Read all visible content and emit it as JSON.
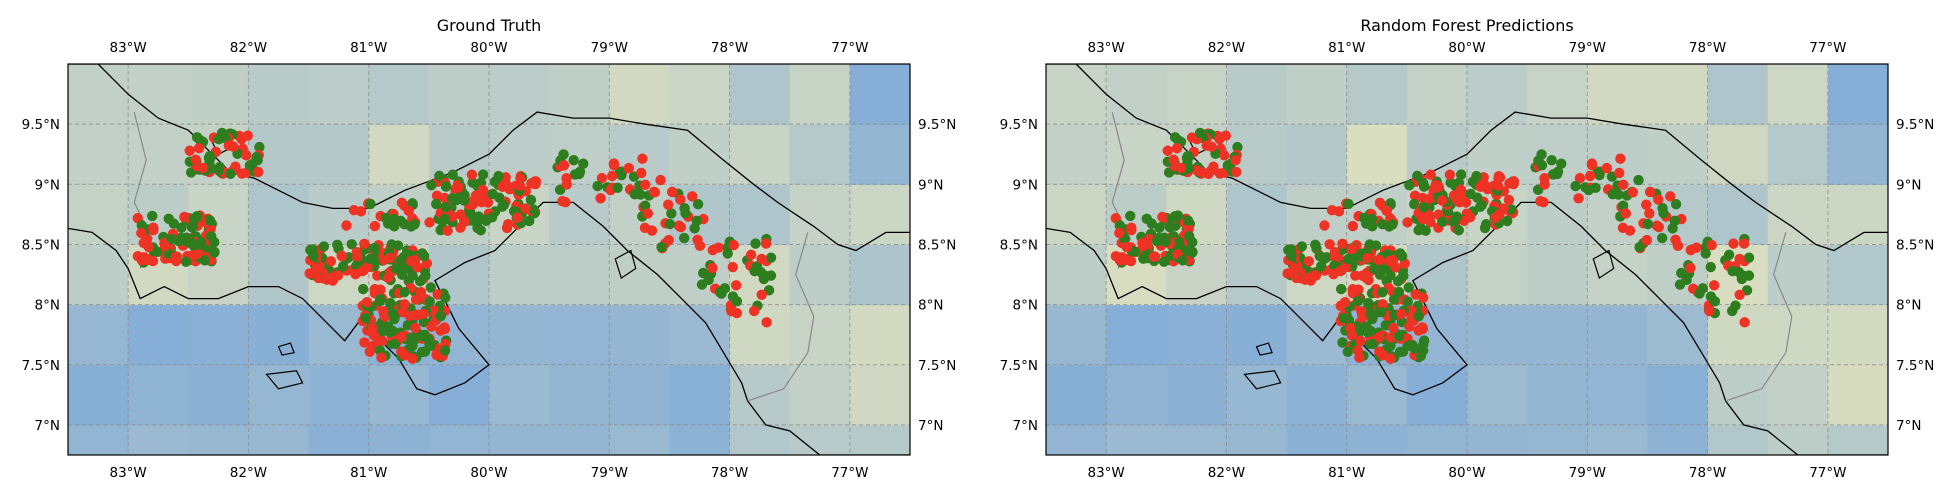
{
  "figure": {
    "panels": [
      {
        "title": "Ground Truth"
      },
      {
        "title": "Random Forest Predictions"
      }
    ],
    "extent": {
      "lon": [
        -83.5,
        -76.5
      ],
      "lat": [
        6.75,
        10.0
      ]
    },
    "x_ticks": [
      {
        "value": -83,
        "label": "83°W"
      },
      {
        "value": -82,
        "label": "82°W"
      },
      {
        "value": -81,
        "label": "81°W"
      },
      {
        "value": -80,
        "label": "80°W"
      },
      {
        "value": -79,
        "label": "79°W"
      },
      {
        "value": -78,
        "label": "78°W"
      },
      {
        "value": -77,
        "label": "77°W"
      }
    ],
    "y_ticks": [
      {
        "value": 9.5,
        "label": "9.5°N"
      },
      {
        "value": 9.0,
        "label": "9°N"
      },
      {
        "value": 8.5,
        "label": "8.5°N"
      },
      {
        "value": 8.0,
        "label": "8°N"
      },
      {
        "value": 7.5,
        "label": "7.5°N"
      },
      {
        "value": 7.0,
        "label": "7°N"
      }
    ],
    "gridlines": true,
    "colors": {
      "presence_point": "#ee3224",
      "absence_point": "#2e7d1f",
      "raster_low": "#86aed6",
      "raster_high": "#dcdfc0",
      "coastline": "#000000",
      "border": "#888888"
    },
    "raster_grid_resolution_deg": 0.5
  }
}
